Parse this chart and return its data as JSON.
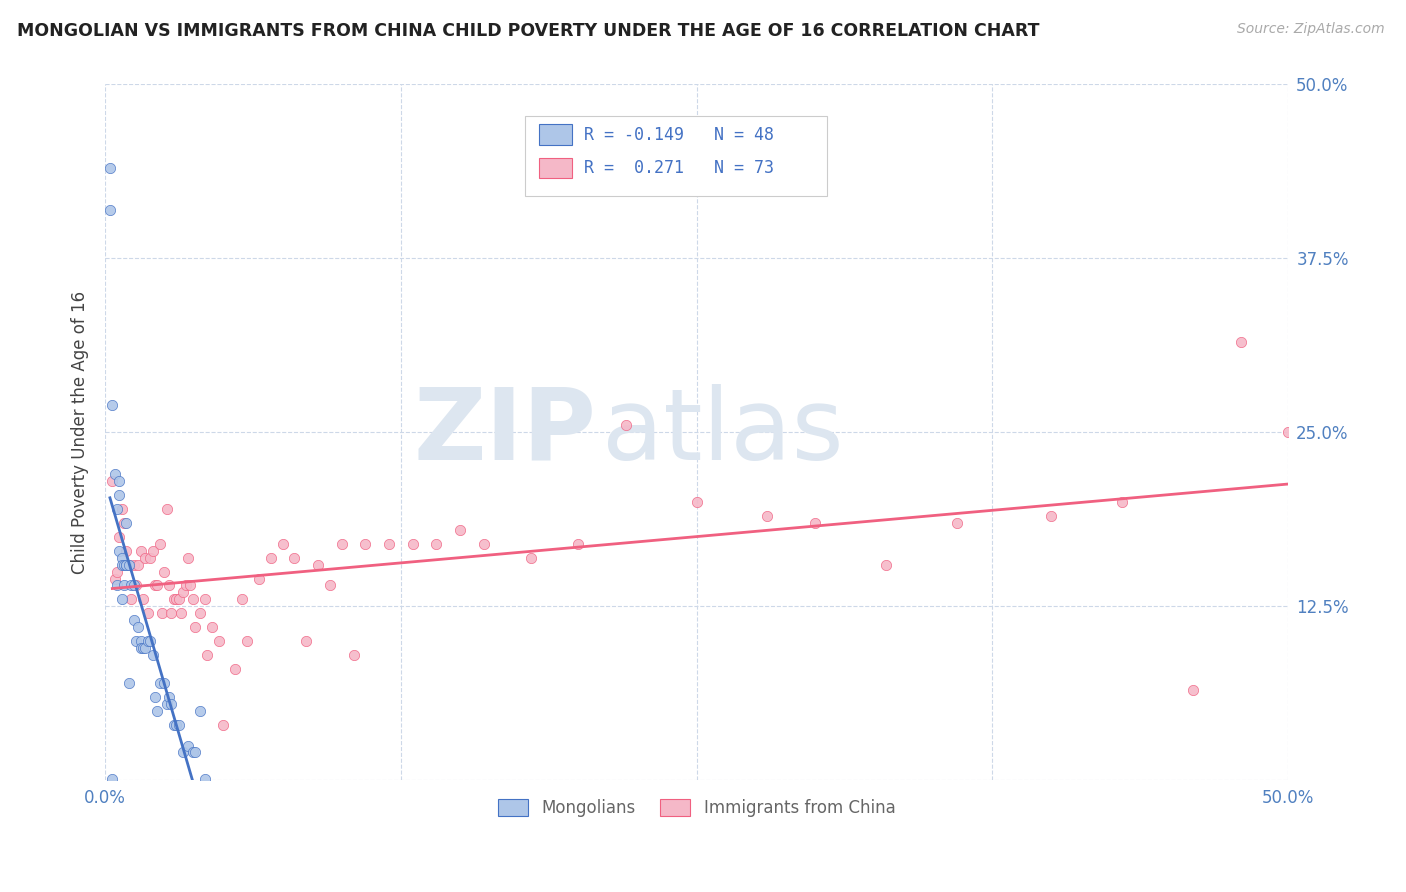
{
  "title": "MONGOLIAN VS IMMIGRANTS FROM CHINA CHILD POVERTY UNDER THE AGE OF 16 CORRELATION CHART",
  "source": "Source: ZipAtlas.com",
  "ylabel": "Child Poverty Under the Age of 16",
  "background_color": "#ffffff",
  "grid_color": "#cdd8e8",
  "mongolian_color": "#aec6e8",
  "china_color": "#f5b8c8",
  "mongolian_line_color": "#4472c4",
  "china_line_color": "#f06080",
  "trendline_dash_color": "#cccccc",
  "mongolian_x": [
    0.002,
    0.002,
    0.003,
    0.003,
    0.004,
    0.005,
    0.005,
    0.006,
    0.006,
    0.006,
    0.007,
    0.007,
    0.007,
    0.008,
    0.008,
    0.009,
    0.009,
    0.009,
    0.01,
    0.01,
    0.011,
    0.012,
    0.012,
    0.013,
    0.014,
    0.015,
    0.015,
    0.016,
    0.017,
    0.018,
    0.019,
    0.02,
    0.021,
    0.022,
    0.023,
    0.025,
    0.026,
    0.027,
    0.028,
    0.029,
    0.03,
    0.031,
    0.033,
    0.035,
    0.037,
    0.038,
    0.04,
    0.042
  ],
  "mongolian_y": [
    0.44,
    0.41,
    0.27,
    0.001,
    0.22,
    0.195,
    0.14,
    0.165,
    0.205,
    0.215,
    0.16,
    0.155,
    0.13,
    0.155,
    0.14,
    0.185,
    0.155,
    0.155,
    0.155,
    0.07,
    0.14,
    0.14,
    0.115,
    0.1,
    0.11,
    0.1,
    0.095,
    0.095,
    0.095,
    0.1,
    0.1,
    0.09,
    0.06,
    0.05,
    0.07,
    0.07,
    0.055,
    0.06,
    0.055,
    0.04,
    0.04,
    0.04,
    0.02,
    0.025,
    0.02,
    0.02,
    0.05,
    0.001
  ],
  "china_x": [
    0.003,
    0.004,
    0.005,
    0.006,
    0.007,
    0.008,
    0.009,
    0.01,
    0.011,
    0.012,
    0.013,
    0.014,
    0.015,
    0.016,
    0.017,
    0.018,
    0.019,
    0.02,
    0.021,
    0.022,
    0.023,
    0.024,
    0.025,
    0.026,
    0.027,
    0.028,
    0.029,
    0.03,
    0.031,
    0.032,
    0.033,
    0.034,
    0.035,
    0.036,
    0.037,
    0.038,
    0.04,
    0.042,
    0.043,
    0.045,
    0.048,
    0.05,
    0.055,
    0.058,
    0.06,
    0.065,
    0.07,
    0.075,
    0.08,
    0.085,
    0.09,
    0.095,
    0.1,
    0.105,
    0.11,
    0.12,
    0.13,
    0.14,
    0.15,
    0.16,
    0.18,
    0.2,
    0.22,
    0.25,
    0.28,
    0.3,
    0.33,
    0.36,
    0.4,
    0.43,
    0.46,
    0.48,
    0.5
  ],
  "china_y": [
    0.215,
    0.145,
    0.15,
    0.175,
    0.195,
    0.185,
    0.165,
    0.155,
    0.13,
    0.155,
    0.14,
    0.155,
    0.165,
    0.13,
    0.16,
    0.12,
    0.16,
    0.165,
    0.14,
    0.14,
    0.17,
    0.12,
    0.15,
    0.195,
    0.14,
    0.12,
    0.13,
    0.13,
    0.13,
    0.12,
    0.135,
    0.14,
    0.16,
    0.14,
    0.13,
    0.11,
    0.12,
    0.13,
    0.09,
    0.11,
    0.1,
    0.04,
    0.08,
    0.13,
    0.1,
    0.145,
    0.16,
    0.17,
    0.16,
    0.1,
    0.155,
    0.14,
    0.17,
    0.09,
    0.17,
    0.17,
    0.17,
    0.17,
    0.18,
    0.17,
    0.16,
    0.17,
    0.255,
    0.2,
    0.19,
    0.185,
    0.155,
    0.185,
    0.19,
    0.2,
    0.065,
    0.315,
    0.25
  ],
  "xlim": [
    0.0,
    0.5
  ],
  "ylim": [
    0.0,
    0.5
  ],
  "xticks": [
    0.0,
    0.125,
    0.25,
    0.375,
    0.5
  ],
  "xticklabels": [
    "0.0%",
    "",
    "",
    "",
    "50.0%"
  ],
  "yticks_right": [
    0.125,
    0.25,
    0.375,
    0.5
  ],
  "yticklabels_right": [
    "12.5%",
    "25.0%",
    "37.5%",
    "50.0%"
  ]
}
